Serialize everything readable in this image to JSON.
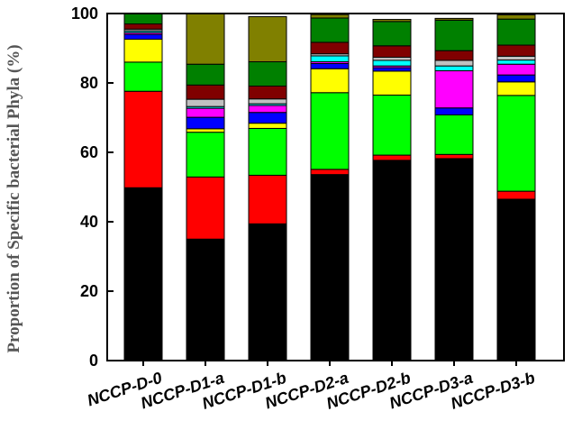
{
  "chart_data": {
    "type": "bar",
    "stacked": true,
    "title": "",
    "xlabel": "",
    "ylabel": "Proportion of Specific bacterial Phyla (%)",
    "ylim": [
      0,
      100
    ],
    "yticks": [
      0,
      20,
      40,
      60,
      80,
      100
    ],
    "grid": false,
    "categories": [
      "NCCP-D-0",
      "NCCP-D1-a",
      "NCCP-D1-b",
      "NCCP-D2-a",
      "NCCP-D2-b",
      "NCCP-D3-a",
      "NCCP-D3-b"
    ],
    "series": [
      {
        "color": "#000000",
        "values": [
          49.8,
          35.0,
          39.4,
          53.6,
          57.7,
          58.2,
          46.5
        ]
      },
      {
        "color": "#ff0000",
        "values": [
          27.8,
          17.9,
          14.0,
          1.5,
          1.5,
          1.2,
          2.3
        ]
      },
      {
        "color": "#00ff00",
        "values": [
          8.4,
          12.9,
          13.5,
          22.1,
          17.3,
          11.4,
          27.6
        ]
      },
      {
        "color": "#ffff00",
        "values": [
          6.6,
          1.0,
          1.5,
          6.9,
          6.9,
          0.0,
          3.9
        ]
      },
      {
        "color": "#0000ff",
        "values": [
          1.4,
          3.3,
          3.1,
          1.5,
          1.0,
          2.0,
          2.0
        ]
      },
      {
        "color": "#ff00ff",
        "values": [
          0.5,
          2.6,
          2.0,
          0.5,
          0.5,
          10.7,
          3.1
        ]
      },
      {
        "color": "#00ffff",
        "values": [
          0.5,
          0.5,
          0.5,
          1.7,
          1.6,
          1.4,
          1.2
        ]
      },
      {
        "color": "#c0c0c0",
        "values": [
          0.5,
          2.1,
          1.4,
          0.6,
          0.9,
          1.6,
          1.1
        ]
      },
      {
        "color": "#800000",
        "values": [
          1.5,
          4.1,
          3.7,
          3.3,
          3.3,
          2.8,
          3.2
        ]
      },
      {
        "color": "#008000",
        "values": [
          3.0,
          6.0,
          7.0,
          7.0,
          7.0,
          8.8,
          7.5
        ]
      },
      {
        "color": "#808000",
        "values": [
          0.0,
          14.6,
          13.0,
          1.0,
          0.6,
          0.5,
          1.2
        ]
      }
    ]
  }
}
